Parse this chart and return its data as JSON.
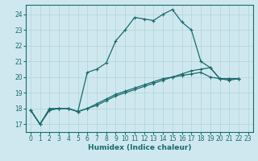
{
  "xlabel": "Humidex (Indice chaleur)",
  "bg_color": "#cfe8ef",
  "grid_color": "#b0d4d4",
  "line_color": "#1a6b6b",
  "xlim": [
    -0.5,
    23.5
  ],
  "ylim": [
    16.5,
    24.6
  ],
  "yticks": [
    17,
    18,
    19,
    20,
    21,
    22,
    23,
    24
  ],
  "xticks": [
    0,
    1,
    2,
    3,
    4,
    5,
    6,
    7,
    8,
    9,
    10,
    11,
    12,
    13,
    14,
    15,
    16,
    17,
    18,
    19,
    20,
    21,
    22,
    23
  ],
  "series1_x": [
    0,
    1,
    2,
    3,
    4,
    5,
    6,
    7,
    8,
    9,
    10,
    11,
    12,
    13,
    14,
    15,
    16,
    17,
    18,
    19,
    20,
    21,
    22,
    23
  ],
  "series1_y": [
    17.9,
    17.0,
    18.0,
    18.0,
    18.0,
    17.8,
    20.3,
    20.5,
    20.9,
    22.3,
    23.0,
    23.8,
    23.7,
    23.6,
    24.0,
    24.3,
    23.5,
    23.0,
    21.0,
    20.6,
    19.9,
    19.9,
    19.9,
    null
  ],
  "series2_x": [
    0,
    1,
    2,
    3,
    4,
    5,
    6,
    7,
    8,
    9,
    10,
    11,
    12,
    13,
    14,
    15,
    16,
    17,
    18,
    19,
    20,
    21,
    22,
    23
  ],
  "series2_y": [
    17.9,
    17.0,
    17.9,
    18.0,
    18.0,
    17.8,
    18.0,
    18.2,
    18.5,
    18.8,
    19.0,
    19.2,
    19.4,
    19.6,
    19.8,
    20.0,
    20.2,
    20.4,
    20.5,
    20.6,
    19.9,
    19.9,
    19.9,
    null
  ],
  "series3_x": [
    0,
    1,
    2,
    3,
    4,
    5,
    6,
    7,
    8,
    9,
    10,
    11,
    12,
    13,
    14,
    15,
    16,
    17,
    18,
    19,
    20,
    21,
    22,
    23
  ],
  "series3_y": [
    17.9,
    17.0,
    17.9,
    18.0,
    18.0,
    17.8,
    18.0,
    18.3,
    18.6,
    18.9,
    19.1,
    19.3,
    19.5,
    19.7,
    19.9,
    20.0,
    20.1,
    20.2,
    20.3,
    20.0,
    19.9,
    19.8,
    19.9,
    null
  ]
}
